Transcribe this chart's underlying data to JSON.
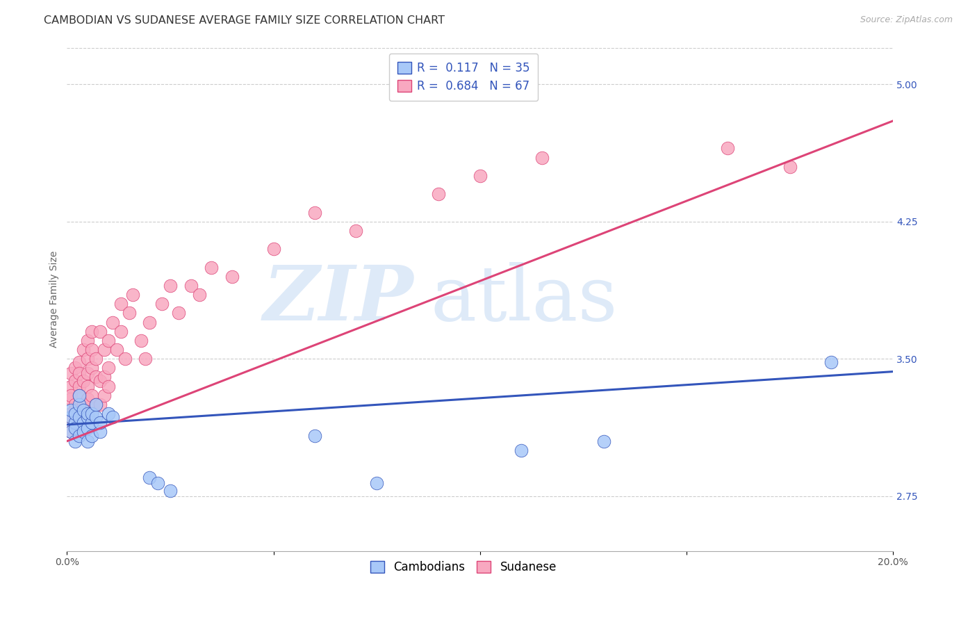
{
  "title": "CAMBODIAN VS SUDANESE AVERAGE FAMILY SIZE CORRELATION CHART",
  "source": "Source: ZipAtlas.com",
  "ylabel": "Average Family Size",
  "xmin": 0.0,
  "xmax": 0.2,
  "ymin": 2.45,
  "ymax": 5.2,
  "yticks": [
    2.75,
    3.5,
    4.25,
    5.0
  ],
  "xtick_labels": [
    "0.0%",
    "",
    "",
    "",
    "20.0%"
  ],
  "xtick_vals": [
    0.0,
    0.05,
    0.1,
    0.15,
    0.2
  ],
  "cambodian_color": "#A8C8F8",
  "sudanese_color": "#F8A8C0",
  "cambodian_line_color": "#3355BB",
  "sudanese_line_color": "#DD4477",
  "cambodian_R": 0.117,
  "cambodian_N": 35,
  "sudanese_R": 0.684,
  "sudanese_N": 67,
  "background_color": "#FFFFFF",
  "grid_color": "#CCCCCC",
  "watermark_zip": "ZIP",
  "watermark_atlas": "atlas",
  "title_fontsize": 11.5,
  "axis_label_fontsize": 10,
  "tick_fontsize": 10,
  "legend_fontsize": 12,
  "cambodian_x": [
    0.001,
    0.001,
    0.001,
    0.002,
    0.002,
    0.002,
    0.002,
    0.003,
    0.003,
    0.003,
    0.003,
    0.004,
    0.004,
    0.004,
    0.005,
    0.005,
    0.005,
    0.005,
    0.006,
    0.006,
    0.006,
    0.007,
    0.007,
    0.008,
    0.008,
    0.01,
    0.011,
    0.02,
    0.022,
    0.025,
    0.06,
    0.075,
    0.13,
    0.185,
    0.11
  ],
  "cambodian_y": [
    3.1,
    3.18,
    3.22,
    3.15,
    3.05,
    3.2,
    3.12,
    3.18,
    3.08,
    3.25,
    3.3,
    3.15,
    3.22,
    3.1,
    3.18,
    3.05,
    3.2,
    3.12,
    3.15,
    3.08,
    3.2,
    3.18,
    3.25,
    3.1,
    3.15,
    3.2,
    3.18,
    2.85,
    2.82,
    2.78,
    3.08,
    2.82,
    3.05,
    3.48,
    3.0
  ],
  "sudanese_x": [
    0.001,
    0.001,
    0.001,
    0.001,
    0.001,
    0.001,
    0.001,
    0.002,
    0.002,
    0.002,
    0.002,
    0.002,
    0.003,
    0.003,
    0.003,
    0.003,
    0.003,
    0.004,
    0.004,
    0.004,
    0.004,
    0.005,
    0.005,
    0.005,
    0.005,
    0.005,
    0.006,
    0.006,
    0.006,
    0.006,
    0.007,
    0.007,
    0.007,
    0.008,
    0.008,
    0.008,
    0.009,
    0.009,
    0.009,
    0.01,
    0.01,
    0.01,
    0.011,
    0.012,
    0.013,
    0.013,
    0.014,
    0.015,
    0.016,
    0.018,
    0.019,
    0.02,
    0.023,
    0.025,
    0.027,
    0.03,
    0.032,
    0.035,
    0.04,
    0.05,
    0.06,
    0.07,
    0.09,
    0.1,
    0.115,
    0.16,
    0.175
  ],
  "sudanese_y": [
    3.2,
    3.35,
    3.1,
    3.28,
    3.42,
    3.18,
    3.3,
    3.25,
    3.38,
    3.15,
    3.45,
    3.22,
    3.35,
    3.2,
    3.48,
    3.3,
    3.42,
    3.25,
    3.55,
    3.38,
    3.18,
    3.42,
    3.28,
    3.5,
    3.35,
    3.6,
    3.45,
    3.3,
    3.55,
    3.65,
    3.4,
    3.25,
    3.5,
    3.38,
    3.65,
    3.25,
    3.55,
    3.4,
    3.3,
    3.45,
    3.6,
    3.35,
    3.7,
    3.55,
    3.65,
    3.8,
    3.5,
    3.75,
    3.85,
    3.6,
    3.5,
    3.7,
    3.8,
    3.9,
    3.75,
    3.9,
    3.85,
    4.0,
    3.95,
    4.1,
    4.3,
    4.2,
    4.4,
    4.5,
    4.6,
    4.65,
    4.55
  ],
  "blue_line_x": [
    0.0,
    0.2
  ],
  "blue_line_y": [
    3.14,
    3.43
  ],
  "pink_line_x": [
    0.0,
    0.2
  ],
  "pink_line_y": [
    3.05,
    4.8
  ]
}
